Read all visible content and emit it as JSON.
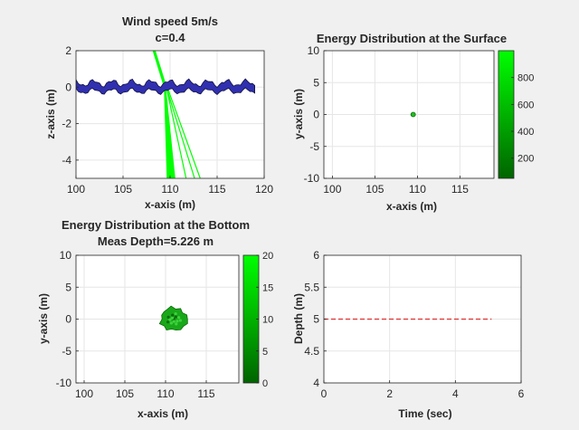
{
  "colors": {
    "figure_bg": "#f0f0f0",
    "axes_bg": "#ffffff",
    "ray": "#00ff00",
    "surface_fill": "#3030b0",
    "depth_line": "#e03030",
    "colormap_low": "#006400",
    "colormap_high": "#00ff00"
  },
  "chart_data": [
    {
      "id": "rays",
      "type": "line",
      "title": "Wind speed 5m/s",
      "subtitle": "c=0.4",
      "xlabel": "x-axis (m)",
      "ylabel": "z-axis (m)",
      "xlim": [
        100,
        120
      ],
      "ylim": [
        -5,
        2
      ],
      "xticks": [
        100,
        105,
        110,
        115,
        120
      ],
      "yticks": [
        2,
        0,
        -2,
        -4
      ],
      "grid": true,
      "surface_mean_z": 0,
      "rays": [
        {
          "x": [
            108.2,
            109.4
          ],
          "z": [
            2.0,
            0.0
          ]
        },
        {
          "x": [
            108.4,
            109.6
          ],
          "z": [
            2.0,
            0.0
          ]
        },
        {
          "x": [
            109.4,
            109.7
          ],
          "z": [
            0.0,
            -5.0
          ]
        },
        {
          "x": [
            109.5,
            110.5
          ],
          "z": [
            0.0,
            -5.0
          ]
        },
        {
          "x": [
            109.6,
            111.7
          ],
          "z": [
            0.0,
            -5.0
          ]
        },
        {
          "x": [
            109.6,
            112.6
          ],
          "z": [
            0.0,
            -5.0
          ]
        },
        {
          "x": [
            109.7,
            113.2
          ],
          "z": [
            0.0,
            -5.0
          ]
        }
      ]
    },
    {
      "id": "surface",
      "type": "scatter",
      "title": "Energy Distribution at the Surface",
      "xlabel": "x-axis (m)",
      "ylabel": "y-axis (m)",
      "xlim": [
        99,
        119
      ],
      "ylim": [
        -10,
        10
      ],
      "xticks": [
        100,
        105,
        110,
        115
      ],
      "yticks": [
        10,
        5,
        0,
        -5,
        -10
      ],
      "grid": true,
      "points": [
        {
          "x": 109.5,
          "y": 0
        }
      ],
      "colorbar": {
        "min": 50,
        "max": 1000,
        "ticks": [
          200,
          400,
          600,
          800
        ]
      }
    },
    {
      "id": "bottom",
      "type": "scatter",
      "title": "Energy Distribution at the Bottom",
      "subtitle": "Meas Depth=5.226 m",
      "xlabel": "x-axis (m)",
      "ylabel": "y-axis (m)",
      "xlim": [
        99,
        119
      ],
      "ylim": [
        -10,
        10
      ],
      "xticks": [
        100,
        105,
        110,
        115
      ],
      "yticks": [
        10,
        5,
        0,
        -5,
        -10
      ],
      "grid": true,
      "blob": {
        "cx": 111,
        "cy": 0,
        "rx": 1.6,
        "ry": 1.8
      },
      "colorbar": {
        "min": 0,
        "max": 20,
        "ticks": [
          0,
          5,
          10,
          15,
          20
        ]
      }
    },
    {
      "id": "depth",
      "type": "line",
      "xlabel": "Time (sec)",
      "ylabel": "Depth (m)",
      "xlim": [
        0,
        6
      ],
      "ylim": [
        4,
        6
      ],
      "xticks": [
        0,
        2,
        4,
        6
      ],
      "yticks": [
        6,
        5.5,
        5,
        4.5,
        4
      ],
      "grid": true,
      "series": [
        {
          "x": [
            0,
            5.1
          ],
          "y": [
            5,
            5
          ],
          "style": "dashed"
        }
      ]
    }
  ]
}
